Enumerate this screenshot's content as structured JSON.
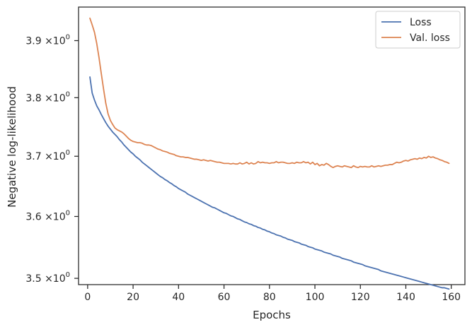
{
  "chart_data": {
    "type": "line",
    "title": "",
    "xlabel": "Epochs",
    "ylabel": "Negative log-likelihood",
    "xlim": [
      -4,
      166
    ],
    "ylim": [
      3.49,
      3.96
    ],
    "yscale": "log",
    "grid": false,
    "legend_position": "top-right",
    "x_ticks": [
      0,
      20,
      40,
      60,
      80,
      100,
      120,
      140,
      160
    ],
    "x_tick_labels": [
      "0",
      "20",
      "40",
      "60",
      "80",
      "100",
      "120",
      "140",
      "160"
    ],
    "y_ticks": [
      3.5,
      3.6,
      3.7,
      3.8,
      3.9
    ],
    "y_tick_labels": [
      "3.5",
      "3.6",
      "3.7",
      "3.8",
      "3.9"
    ],
    "y_tick_suffix": "×10",
    "y_tick_exponent": "0",
    "x": [
      1,
      2,
      3,
      4,
      5,
      6,
      7,
      8,
      9,
      10,
      11,
      12,
      13,
      14,
      15,
      16,
      17,
      18,
      19,
      20,
      21,
      22,
      23,
      24,
      25,
      26,
      27,
      28,
      29,
      30,
      31,
      32,
      33,
      34,
      35,
      36,
      37,
      38,
      39,
      40,
      41,
      42,
      43,
      44,
      45,
      46,
      47,
      48,
      49,
      50,
      51,
      52,
      53,
      54,
      55,
      56,
      57,
      58,
      59,
      60,
      61,
      62,
      63,
      64,
      65,
      66,
      67,
      68,
      69,
      70,
      71,
      72,
      73,
      74,
      75,
      76,
      77,
      78,
      79,
      80,
      81,
      82,
      83,
      84,
      85,
      86,
      87,
      88,
      89,
      90,
      91,
      92,
      93,
      94,
      95,
      96,
      97,
      98,
      99,
      100,
      101,
      102,
      103,
      104,
      105,
      106,
      107,
      108,
      109,
      110,
      111,
      112,
      113,
      114,
      115,
      116,
      117,
      118,
      119,
      120,
      121,
      122,
      123,
      124,
      125,
      126,
      127,
      128,
      129,
      130,
      131,
      132,
      133,
      134,
      135,
      136,
      137,
      138,
      139,
      140,
      141,
      142,
      143,
      144,
      145,
      146,
      147,
      148,
      149,
      150,
      151,
      152,
      153,
      154,
      155,
      156,
      157,
      158,
      159
    ],
    "series": [
      {
        "name": "Loss",
        "color": "#4c72b0",
        "values": [
          3.836,
          3.808,
          3.796,
          3.786,
          3.779,
          3.771,
          3.764,
          3.757,
          3.751,
          3.746,
          3.741,
          3.737,
          3.733,
          3.728,
          3.724,
          3.719,
          3.715,
          3.711,
          3.707,
          3.704,
          3.7,
          3.697,
          3.694,
          3.69,
          3.687,
          3.684,
          3.681,
          3.678,
          3.675,
          3.672,
          3.669,
          3.666,
          3.664,
          3.661,
          3.659,
          3.656,
          3.654,
          3.651,
          3.649,
          3.646,
          3.644,
          3.642,
          3.64,
          3.637,
          3.635,
          3.633,
          3.631,
          3.629,
          3.627,
          3.625,
          3.623,
          3.621,
          3.619,
          3.617,
          3.615,
          3.614,
          3.612,
          3.61,
          3.608,
          3.606,
          3.605,
          3.603,
          3.601,
          3.6,
          3.598,
          3.596,
          3.595,
          3.593,
          3.591,
          3.59,
          3.588,
          3.587,
          3.585,
          3.584,
          3.582,
          3.581,
          3.579,
          3.578,
          3.576,
          3.575,
          3.573,
          3.572,
          3.57,
          3.569,
          3.568,
          3.566,
          3.565,
          3.563,
          3.562,
          3.561,
          3.559,
          3.558,
          3.557,
          3.555,
          3.554,
          3.553,
          3.551,
          3.55,
          3.549,
          3.547,
          3.546,
          3.545,
          3.544,
          3.542,
          3.541,
          3.54,
          3.539,
          3.537,
          3.536,
          3.535,
          3.534,
          3.532,
          3.531,
          3.53,
          3.529,
          3.528,
          3.526,
          3.525,
          3.524,
          3.523,
          3.522,
          3.52,
          3.519,
          3.518,
          3.517,
          3.516,
          3.515,
          3.514,
          3.512,
          3.511,
          3.51,
          3.509,
          3.508,
          3.507,
          3.506,
          3.505,
          3.504,
          3.503,
          3.502,
          3.501,
          3.5,
          3.499,
          3.498,
          3.497,
          3.496,
          3.495,
          3.494,
          3.493,
          3.492,
          3.491,
          3.49,
          3.489,
          3.488,
          3.487,
          3.486,
          3.485,
          3.485,
          3.484,
          3.483
        ]
      },
      {
        "name": "Val. loss",
        "color": "#dd8452",
        "values": [
          3.94,
          3.928,
          3.915,
          3.895,
          3.87,
          3.842,
          3.815,
          3.79,
          3.772,
          3.761,
          3.754,
          3.748,
          3.745,
          3.743,
          3.741,
          3.738,
          3.734,
          3.73,
          3.727,
          3.725,
          3.724,
          3.723,
          3.723,
          3.722,
          3.72,
          3.719,
          3.719,
          3.718,
          3.716,
          3.714,
          3.712,
          3.711,
          3.709,
          3.708,
          3.707,
          3.705,
          3.704,
          3.703,
          3.701,
          3.7,
          3.699,
          3.699,
          3.698,
          3.698,
          3.697,
          3.696,
          3.695,
          3.695,
          3.694,
          3.693,
          3.694,
          3.693,
          3.692,
          3.693,
          3.692,
          3.691,
          3.69,
          3.69,
          3.689,
          3.688,
          3.688,
          3.688,
          3.687,
          3.688,
          3.687,
          3.687,
          3.689,
          3.687,
          3.688,
          3.69,
          3.687,
          3.689,
          3.687,
          3.688,
          3.691,
          3.689,
          3.69,
          3.689,
          3.689,
          3.688,
          3.689,
          3.689,
          3.691,
          3.689,
          3.69,
          3.69,
          3.689,
          3.688,
          3.688,
          3.689,
          3.688,
          3.69,
          3.689,
          3.689,
          3.691,
          3.689,
          3.69,
          3.687,
          3.69,
          3.686,
          3.688,
          3.684,
          3.686,
          3.685,
          3.688,
          3.686,
          3.683,
          3.681,
          3.683,
          3.684,
          3.683,
          3.682,
          3.684,
          3.683,
          3.682,
          3.681,
          3.684,
          3.682,
          3.681,
          3.683,
          3.682,
          3.683,
          3.682,
          3.682,
          3.684,
          3.682,
          3.683,
          3.684,
          3.683,
          3.684,
          3.685,
          3.685,
          3.686,
          3.686,
          3.688,
          3.69,
          3.689,
          3.69,
          3.692,
          3.693,
          3.692,
          3.694,
          3.695,
          3.696,
          3.695,
          3.697,
          3.696,
          3.698,
          3.697,
          3.7,
          3.698,
          3.699,
          3.697,
          3.696,
          3.694,
          3.693,
          3.691,
          3.69,
          3.688
        ]
      }
    ]
  }
}
